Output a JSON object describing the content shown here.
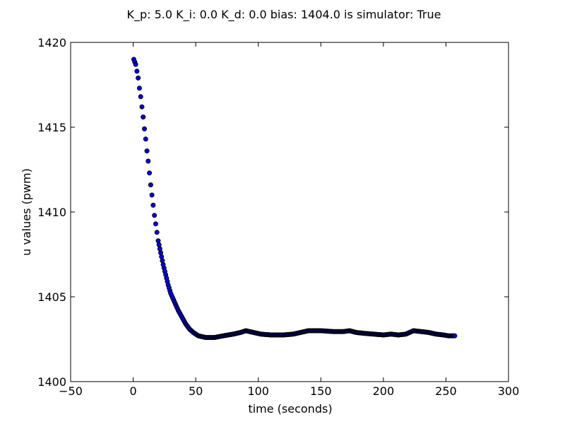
{
  "chart_data": {
    "type": "scatter",
    "title": "K_p: 5.0 K_i: 0.0 K_d: 0.0 bias: 1404.0 is simulator: True",
    "xlabel": "time (seconds)",
    "ylabel": "u values (pwm)",
    "xlim": [
      -50,
      300
    ],
    "ylim": [
      1400,
      1420
    ],
    "xticks": [
      "−50",
      "0",
      "50",
      "100",
      "150",
      "200",
      "250",
      "300"
    ],
    "yticks": [
      "1400",
      "1405",
      "1410",
      "1415",
      "1420"
    ],
    "grid": false,
    "legend": "none",
    "marker_color": "#0000ff",
    "marker_edge_color": "#000000",
    "curve": [
      [
        0.5,
        1419.0
      ],
      [
        2,
        1418.7
      ],
      [
        3,
        1418.3
      ],
      [
        4,
        1417.9
      ],
      [
        5,
        1417.3
      ],
      [
        6,
        1416.8
      ],
      [
        7,
        1416.2
      ],
      [
        8,
        1415.6
      ],
      [
        9,
        1414.9
      ],
      [
        10,
        1414.3
      ],
      [
        11,
        1413.6
      ],
      [
        12,
        1413.0
      ],
      [
        13,
        1412.3
      ],
      [
        14,
        1411.6
      ],
      [
        15,
        1411.0
      ],
      [
        16,
        1410.4
      ],
      [
        17,
        1409.8
      ],
      [
        18,
        1409.3
      ],
      [
        19,
        1408.8
      ],
      [
        20,
        1408.3
      ],
      [
        22,
        1407.6
      ],
      [
        24,
        1406.9
      ],
      [
        26,
        1406.3
      ],
      [
        28,
        1405.7
      ],
      [
        30,
        1405.2
      ],
      [
        33,
        1404.7
      ],
      [
        36,
        1404.2
      ],
      [
        39,
        1403.8
      ],
      [
        42,
        1403.4
      ],
      [
        45,
        1403.1
      ],
      [
        48,
        1402.9
      ],
      [
        52,
        1402.7
      ],
      [
        58,
        1402.6
      ],
      [
        65,
        1402.6
      ],
      [
        72,
        1402.7
      ],
      [
        80,
        1402.8
      ],
      [
        86,
        1402.9
      ],
      [
        90,
        1403.0
      ],
      [
        96,
        1402.9
      ],
      [
        102,
        1402.8
      ],
      [
        110,
        1402.75
      ],
      [
        120,
        1402.75
      ],
      [
        128,
        1402.8
      ],
      [
        134,
        1402.9
      ],
      [
        140,
        1403.0
      ],
      [
        150,
        1403.0
      ],
      [
        160,
        1402.95
      ],
      [
        168,
        1402.95
      ],
      [
        173,
        1403.0
      ],
      [
        178,
        1402.9
      ],
      [
        184,
        1402.85
      ],
      [
        192,
        1402.8
      ],
      [
        200,
        1402.75
      ],
      [
        206,
        1402.8
      ],
      [
        212,
        1402.75
      ],
      [
        218,
        1402.8
      ],
      [
        224,
        1403.0
      ],
      [
        230,
        1402.95
      ],
      [
        236,
        1402.9
      ],
      [
        242,
        1402.8
      ],
      [
        248,
        1402.75
      ],
      [
        252,
        1402.7
      ],
      [
        257,
        1402.7
      ]
    ],
    "sample_spacing_seconds": 0.75
  }
}
